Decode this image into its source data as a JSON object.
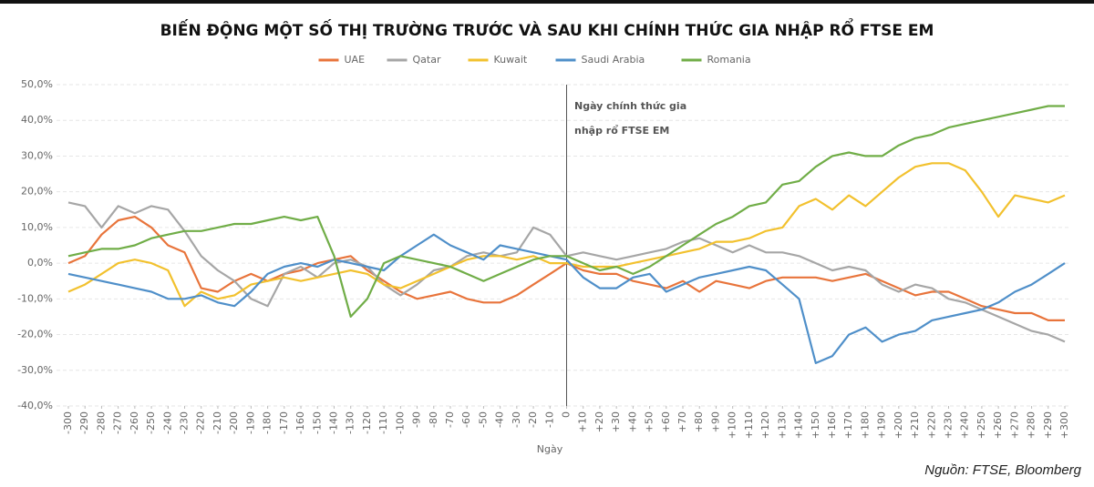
{
  "chart_data": {
    "type": "line",
    "title": "BIẾN ĐỘNG MỘT SỐ THỊ TRƯỜNG TRƯỚC VÀ SAU KHI CHÍNH THỨC GIA NHẬP RỔ FTSE EM",
    "annotation": [
      "Ngày chính thức gia",
      "nhập rổ FTSE EM"
    ],
    "xlabel": "Ngày",
    "source": "Nguồn: FTSE, Bloomberg",
    "x": [
      -300,
      -290,
      -280,
      -270,
      -260,
      -250,
      -240,
      -230,
      -220,
      -210,
      -200,
      -190,
      -180,
      -170,
      -160,
      -150,
      -140,
      -130,
      -120,
      -110,
      -100,
      -90,
      -80,
      -70,
      -60,
      -50,
      -40,
      -30,
      -20,
      -10,
      0,
      10,
      20,
      30,
      40,
      50,
      60,
      70,
      80,
      90,
      100,
      110,
      120,
      130,
      140,
      150,
      160,
      170,
      180,
      190,
      200,
      210,
      220,
      230,
      240,
      250,
      260,
      270,
      280,
      290,
      300
    ],
    "xlim": [
      -300,
      300
    ],
    "xticks": [
      -300,
      -290,
      -280,
      -270,
      -260,
      -250,
      -240,
      -230,
      -220,
      -210,
      -200,
      -190,
      -180,
      -170,
      -160,
      -150,
      -140,
      -130,
      -120,
      -110,
      -100,
      -90,
      -80,
      -70,
      -60,
      -50,
      -40,
      -30,
      -20,
      -10,
      0,
      {
        "value": 10,
        "label": "+10"
      },
      {
        "value": 20,
        "label": "+20"
      },
      {
        "value": 30,
        "label": "+30"
      },
      {
        "value": 40,
        "label": "+40"
      },
      {
        "value": 50,
        "label": "+50"
      },
      {
        "value": 60,
        "label": "+60"
      },
      {
        "value": 70,
        "label": "+70"
      },
      {
        "value": 80,
        "label": "+80"
      },
      {
        "value": 90,
        "label": "+90"
      },
      {
        "value": 100,
        "label": "+100"
      },
      {
        "value": 110,
        "label": "+110"
      },
      {
        "value": 120,
        "label": "+120"
      },
      {
        "value": 130,
        "label": "+130"
      },
      {
        "value": 140,
        "label": "+140"
      },
      {
        "value": 150,
        "label": "+150"
      },
      {
        "value": 160,
        "label": "+160"
      },
      {
        "value": 170,
        "label": "+170"
      },
      {
        "value": 180,
        "label": "+180"
      },
      {
        "value": 190,
        "label": "+190"
      },
      {
        "value": 200,
        "label": "+200"
      },
      {
        "value": 210,
        "label": "+210"
      },
      {
        "value": 220,
        "label": "+220"
      },
      {
        "value": 230,
        "label": "+230"
      },
      {
        "value": 240,
        "label": "+240"
      },
      {
        "value": 250,
        "label": "+250"
      },
      {
        "value": 260,
        "label": "+260"
      },
      {
        "value": 270,
        "label": "+270"
      },
      {
        "value": 280,
        "label": "+280"
      },
      {
        "value": 290,
        "label": "+290"
      },
      {
        "value": 300,
        "label": "+300"
      }
    ],
    "ylim": [
      -40,
      50
    ],
    "yticks": [
      {
        "value": -40,
        "label": "-40,0%"
      },
      {
        "value": -30,
        "label": "-30,0%"
      },
      {
        "value": -20,
        "label": "-20,0%"
      },
      {
        "value": -10,
        "label": "-10,0%"
      },
      {
        "value": 0,
        "label": "0,0%"
      },
      {
        "value": 10,
        "label": "10,0%"
      },
      {
        "value": 20,
        "label": "20,0%"
      },
      {
        "value": 30,
        "label": "30,0%"
      },
      {
        "value": 40,
        "label": "40,0%"
      },
      {
        "value": 50,
        "label": "50,0%"
      }
    ],
    "grid": true,
    "series": [
      {
        "name": "UAE",
        "color": "#e8743b",
        "values": [
          0,
          2,
          8,
          12,
          13,
          10,
          5,
          3,
          -7,
          -8,
          -5,
          -3,
          -5,
          -3,
          -2,
          0,
          1,
          2,
          -2,
          -5,
          -8,
          -10,
          -9,
          -8,
          -10,
          -11,
          -11,
          -9,
          -6,
          -3,
          0,
          -2,
          -3,
          -3,
          -5,
          -6,
          -7,
          -5,
          -8,
          -5,
          -6,
          -7,
          -5,
          -4,
          -4,
          -4,
          -5,
          -4,
          -3,
          -5,
          -7,
          -9,
          -8,
          -8,
          -10,
          -12,
          -13,
          -14,
          -14,
          -16,
          -16
        ]
      },
      {
        "name": "Qatar",
        "color": "#a6a6a6",
        "values": [
          17,
          16,
          10,
          16,
          14,
          16,
          15,
          9,
          2,
          -2,
          -5,
          -10,
          -12,
          -3,
          -1,
          -4,
          0,
          1,
          -1,
          -6,
          -9,
          -6,
          -2,
          -1,
          2,
          3,
          2,
          3,
          10,
          8,
          2,
          3,
          2,
          1,
          2,
          3,
          4,
          6,
          7,
          5,
          3,
          5,
          3,
          3,
          2,
          0,
          -2,
          -1,
          -2,
          -6,
          -8,
          -6,
          -7,
          -10,
          -11,
          -13,
          -15,
          -17,
          -19,
          -20,
          -22
        ]
      },
      {
        "name": "Kuwait",
        "color": "#f2c12e",
        "values": [
          -8,
          -6,
          -3,
          0,
          1,
          0,
          -2,
          -12,
          -8,
          -10,
          -9,
          -6,
          -5,
          -4,
          -5,
          -4,
          -3,
          -2,
          -3,
          -6,
          -7,
          -5,
          -3,
          -1,
          1,
          2,
          2,
          1,
          2,
          0,
          0,
          -1,
          -1,
          -1,
          0,
          1,
          2,
          3,
          4,
          6,
          6,
          7,
          9,
          10,
          16,
          18,
          15,
          19,
          16,
          20,
          24,
          27,
          28,
          28,
          26,
          20,
          13,
          19,
          18,
          17,
          19
        ]
      },
      {
        "name": "Saudi Arabia",
        "color": "#4f8fc9",
        "values": [
          -3,
          -4,
          -5,
          -6,
          -7,
          -8,
          -10,
          -10,
          -9,
          -11,
          -12,
          -8,
          -3,
          -1,
          0,
          -1,
          1,
          0,
          -1,
          -2,
          2,
          5,
          8,
          5,
          3,
          1,
          5,
          4,
          3,
          2,
          1,
          -4,
          -7,
          -7,
          -4,
          -3,
          -8,
          -6,
          -4,
          -3,
          -2,
          -1,
          -2,
          -6,
          -10,
          -28,
          -26,
          -20,
          -18,
          -22,
          -20,
          -19,
          -16,
          -15,
          -14,
          -13,
          -11,
          -8,
          -6,
          -3,
          0
        ]
      },
      {
        "name": "Romania",
        "color": "#70ad47",
        "values": [
          2,
          3,
          4,
          4,
          5,
          7,
          8,
          9,
          9,
          10,
          11,
          11,
          12,
          13,
          12,
          13,
          2,
          -15,
          -10,
          0,
          2,
          1,
          0,
          -1,
          -3,
          -5,
          -3,
          -1,
          1,
          2,
          2,
          0,
          -2,
          -1,
          -3,
          -1,
          2,
          5,
          8,
          11,
          13,
          16,
          17,
          22,
          23,
          27,
          30,
          31,
          30,
          30,
          33,
          35,
          36,
          38,
          39,
          40,
          41,
          42,
          43,
          44,
          44
        ]
      }
    ]
  }
}
